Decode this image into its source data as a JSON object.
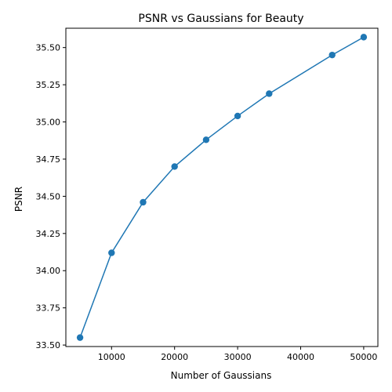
{
  "chart_data": {
    "type": "line",
    "title": "PSNR vs Gaussians for Beauty",
    "xlabel": "Number of Gaussians",
    "ylabel": "PSNR",
    "x": [
      5000,
      10000,
      15000,
      20000,
      25000,
      30000,
      35000,
      45000,
      50000
    ],
    "series": [
      {
        "values": [
          33.55,
          34.12,
          34.46,
          34.7,
          34.88,
          35.04,
          35.19,
          35.45,
          35.57
        ]
      }
    ],
    "xlim": [
      2750,
      52250
    ],
    "ylim": [
      33.49,
      35.63
    ],
    "xticks": [
      10000,
      20000,
      30000,
      40000,
      50000
    ],
    "xtick_labels": [
      "10000",
      "20000",
      "30000",
      "40000",
      "50000"
    ],
    "yticks": [
      33.5,
      33.75,
      34.0,
      34.25,
      34.5,
      34.75,
      35.0,
      35.25,
      35.5
    ],
    "ytick_labels": [
      "33.50",
      "33.75",
      "34.00",
      "34.25",
      "34.50",
      "34.75",
      "35.00",
      "35.25",
      "35.50"
    ],
    "grid": false,
    "markers": true,
    "colors": {
      "line": "#1f77b4",
      "marker": "#1f77b4",
      "axis": "#000000"
    }
  }
}
